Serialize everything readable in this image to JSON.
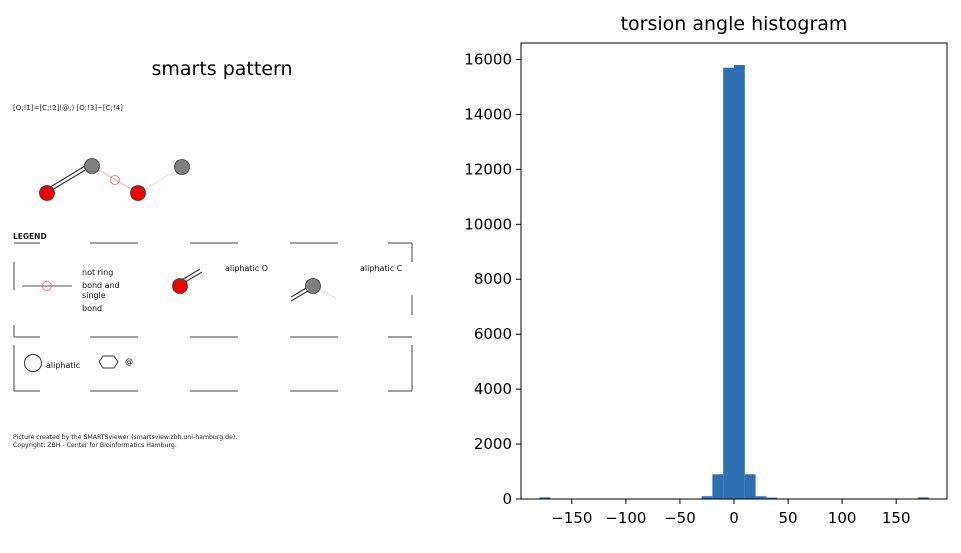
{
  "smarts": {
    "title": "smarts pattern",
    "pattern_text": "[O;!1]=[C;!2](@;) [O;!3]~[C;!4]",
    "legend_title": "LEGEND",
    "legend_items": [
      "not ring",
      "bond and",
      "single",
      "bond",
      "aliphatic O",
      "aliphatic C",
      "aliphatic",
      "@"
    ],
    "footer_lines": [
      "Picture created by the SMARTSviewer (smartsview.zbh.uni-hamburg.de).",
      "Copyright: ZBH - Center for Bioinformatics Hamburg."
    ],
    "colors": {
      "oxygen": "#ee0000",
      "carbon": "#808080"
    }
  },
  "chart_data": {
    "type": "bar",
    "title": "torsion angle histogram",
    "xlabel": "",
    "ylabel": "",
    "bar_color": "#2c6fb3",
    "xlim": [
      -197,
      197
    ],
    "ylim": [
      0,
      16600
    ],
    "xticks": [
      -150,
      -100,
      -50,
      0,
      50,
      100,
      150
    ],
    "xtick_labels": [
      "−150",
      "−100",
      "−50",
      "0",
      "50",
      "100",
      "150"
    ],
    "yticks": [
      0,
      2000,
      4000,
      6000,
      8000,
      10000,
      12000,
      14000,
      16000
    ],
    "bin_width": 10,
    "bins": [
      {
        "x0": -180,
        "value": 60
      },
      {
        "x0": -30,
        "value": 100
      },
      {
        "x0": -20,
        "value": 900
      },
      {
        "x0": -10,
        "value": 15700
      },
      {
        "x0": 0,
        "value": 15800
      },
      {
        "x0": 10,
        "value": 900
      },
      {
        "x0": 20,
        "value": 100
      },
      {
        "x0": 30,
        "value": 50
      },
      {
        "x0": 170,
        "value": 60
      }
    ],
    "grid": false,
    "legend": "none"
  }
}
